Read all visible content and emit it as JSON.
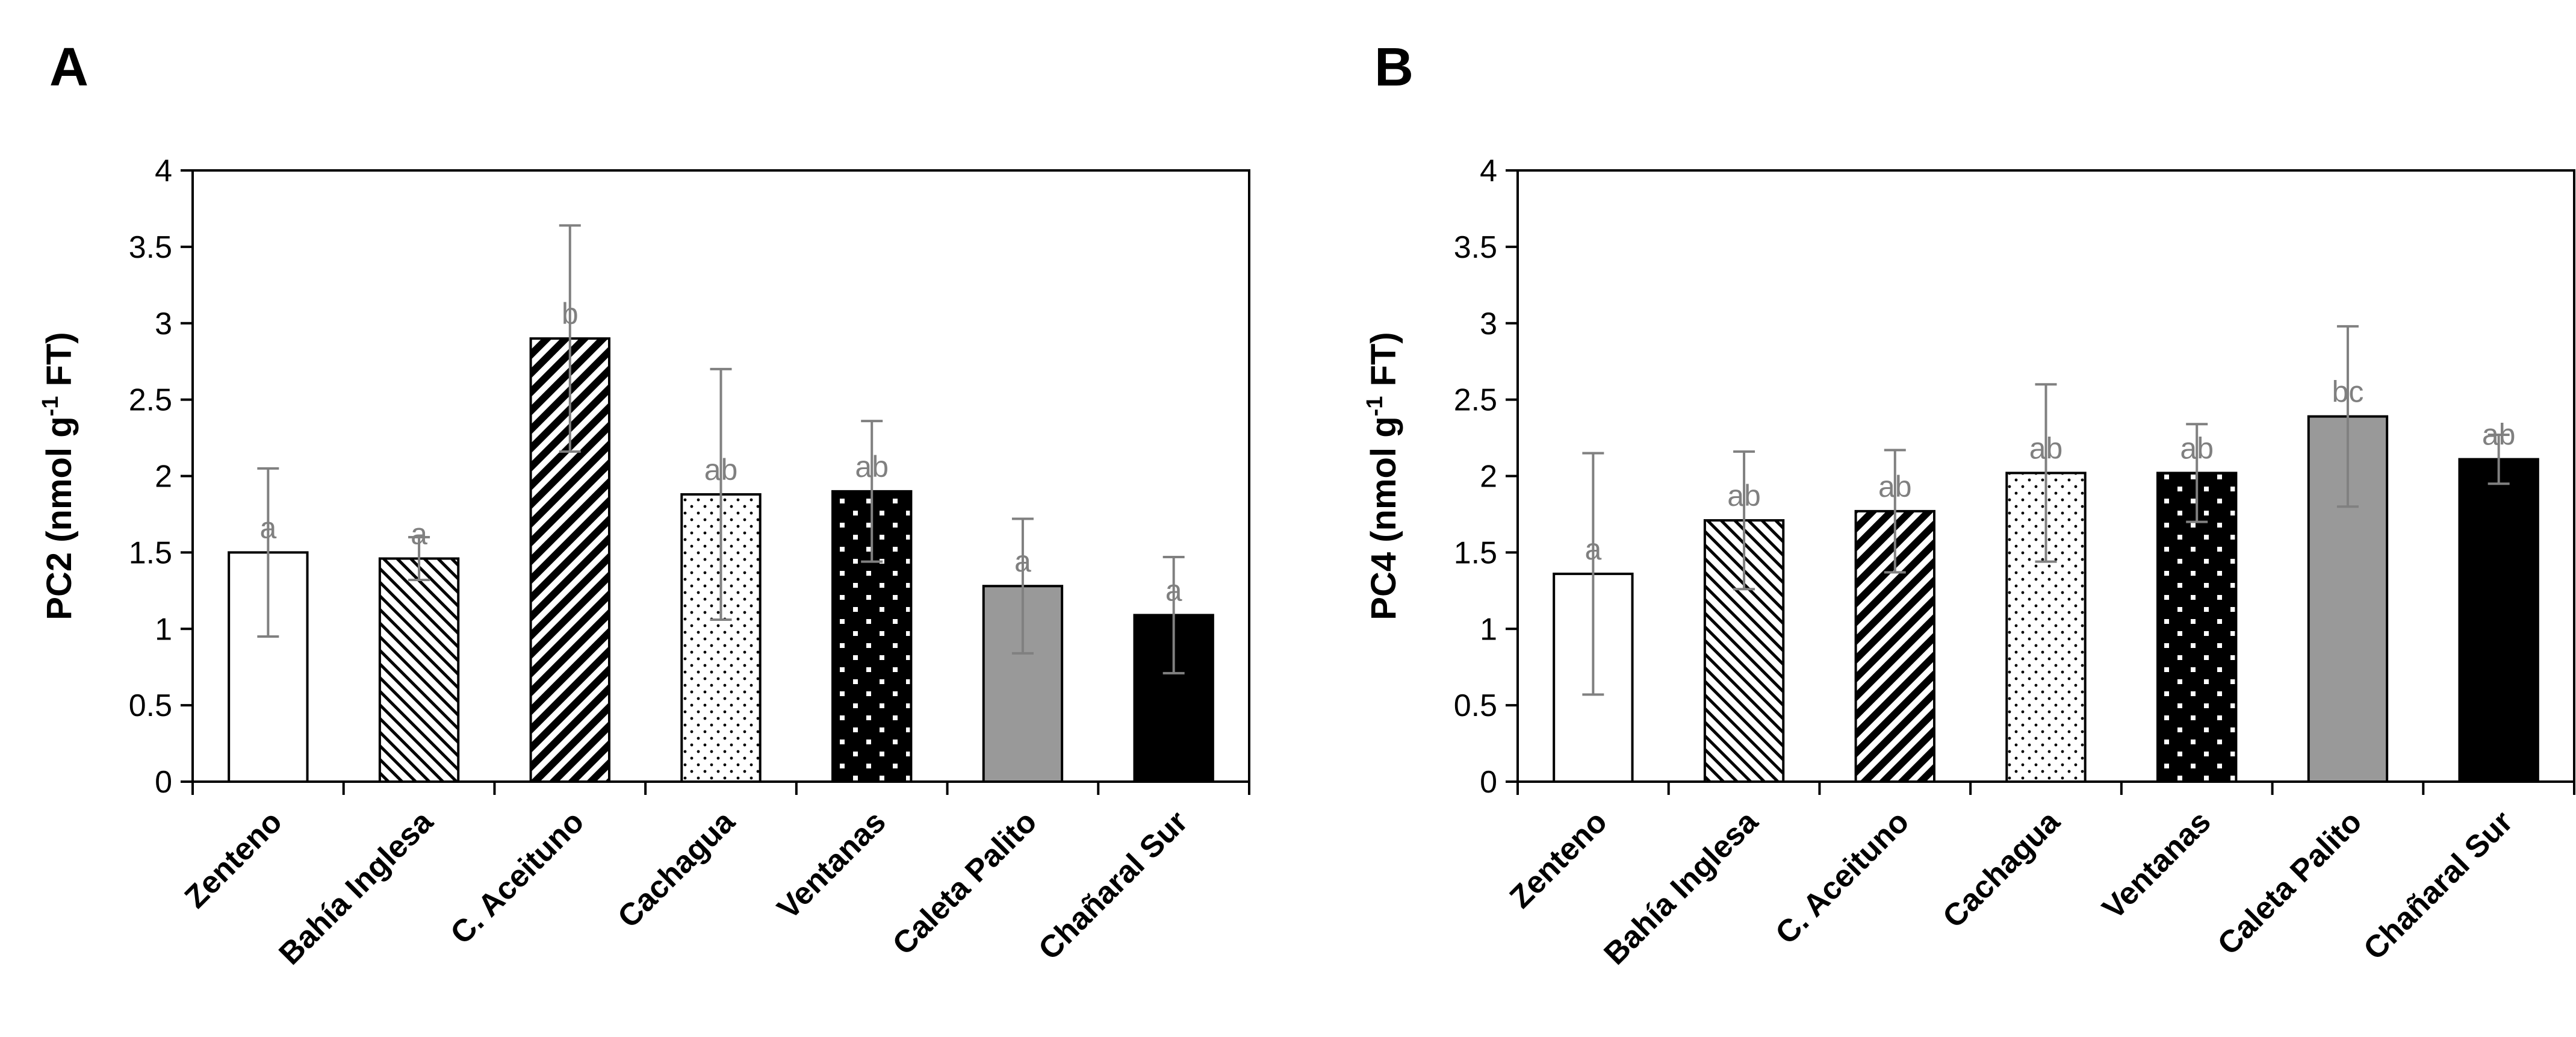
{
  "colors": {
    "axis": "#000000",
    "error_bar": "#808080",
    "sig_text": "#808080",
    "gray_bar": "#999999",
    "black_bar": "#000000",
    "white_bar": "#ffffff"
  },
  "chart_data": [
    {
      "type": "bar",
      "panel": "A",
      "title": "",
      "ylabel": {
        "main": "PC2 (nmol g",
        "sup": "-1",
        "tail": " FT)"
      },
      "xlabel": "",
      "ylim": [
        0,
        4
      ],
      "yticks": [
        "0",
        "0.5",
        "1",
        "1.5",
        "2",
        "2.5",
        "3",
        "3.5",
        "4"
      ],
      "categories": [
        "Zenteno",
        "Bahía Inglesa",
        "C. Aceituno",
        "Cachagua",
        "Ventanas",
        "Caleta Palito",
        "Chañaral Sur"
      ],
      "patterns": [
        "white",
        "light-diagonal",
        "dark-diagonal",
        "dots",
        "black-dots",
        "gray",
        "black"
      ],
      "values": [
        1.5,
        1.46,
        2.9,
        1.88,
        1.9,
        1.28,
        1.09
      ],
      "errors": [
        0.55,
        0.14,
        0.74,
        0.82,
        0.46,
        0.44,
        0.38
      ],
      "significance": [
        "a",
        "a",
        "b",
        "ab",
        "ab",
        "a",
        "a"
      ]
    },
    {
      "type": "bar",
      "panel": "B",
      "title": "",
      "ylabel": {
        "main": "PC4 (nmol g",
        "sup": "-1",
        "tail": " FT)"
      },
      "xlabel": "",
      "ylim": [
        0,
        4
      ],
      "yticks": [
        "0",
        "0.5",
        "1",
        "1.5",
        "2",
        "2.5",
        "3",
        "3.5",
        "4"
      ],
      "categories": [
        "Zenteno",
        "Bahía Inglesa",
        "C. Aceituno",
        "Cachagua",
        "Ventanas",
        "Caleta Palito",
        "Chañaral Sur"
      ],
      "patterns": [
        "white",
        "light-diagonal",
        "dark-diagonal",
        "dots",
        "black-dots",
        "gray",
        "black"
      ],
      "values": [
        1.36,
        1.71,
        1.77,
        2.02,
        2.02,
        2.39,
        2.11
      ],
      "errors": [
        0.79,
        0.45,
        0.4,
        0.58,
        0.32,
        0.59,
        0.16
      ],
      "significance": [
        "a",
        "ab",
        "ab",
        "ab",
        "ab",
        "bc",
        "ab"
      ]
    }
  ]
}
